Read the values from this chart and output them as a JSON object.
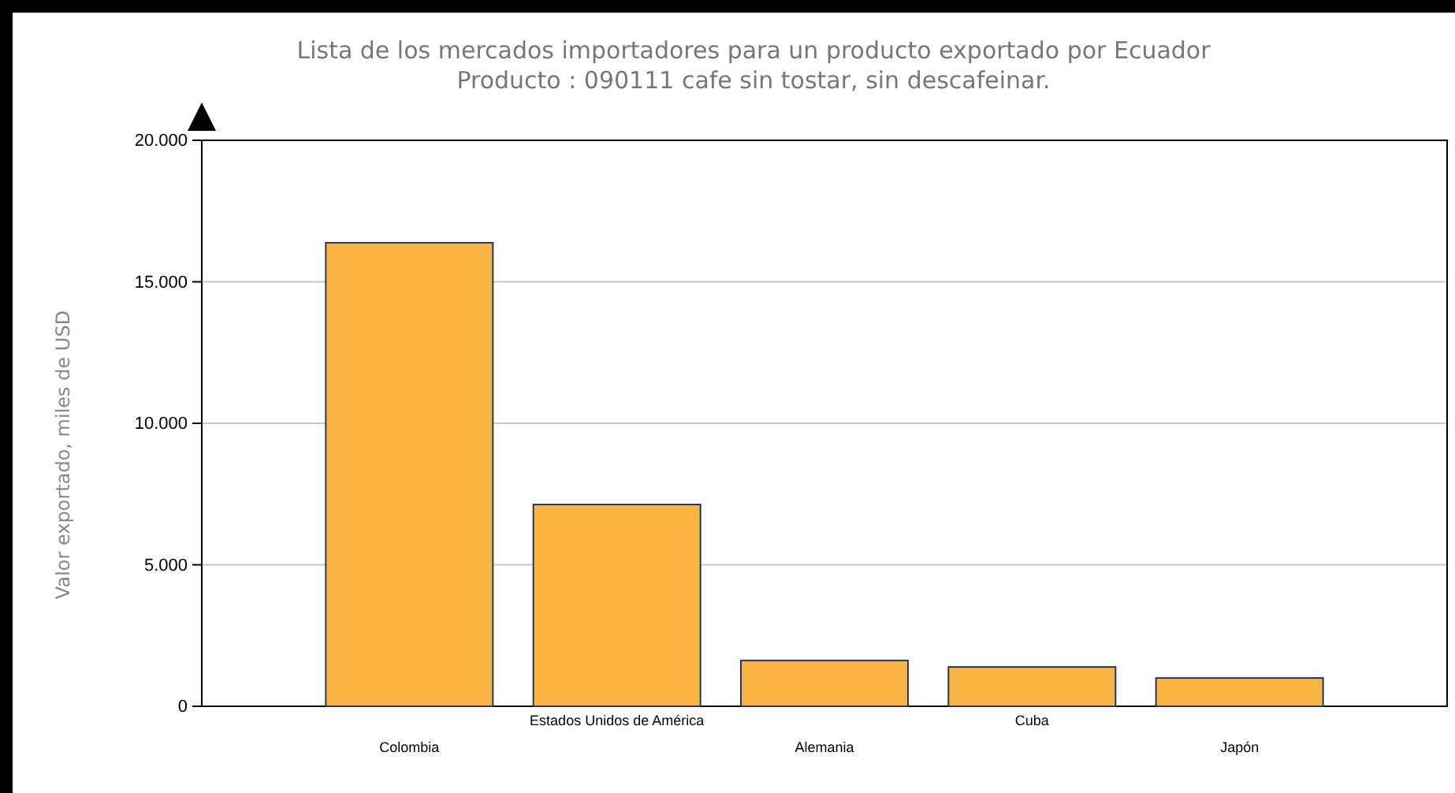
{
  "chart_data": {
    "type": "bar",
    "title": "Lista de los mercados importadores para un producto exportado por Ecuador",
    "subtitle": "Producto : 090111 cafe sin tostar, sin descafeinar.",
    "ylabel": "Valor exportado, miles de USD",
    "categories": [
      "Colombia",
      "Estados Unidos de América",
      "Alemania",
      "Cuba",
      "Japón"
    ],
    "values": [
      16380,
      7130,
      1620,
      1390,
      1000
    ],
    "color": "#fbb442",
    "ylim": [
      0,
      20000
    ],
    "yticks": [
      {
        "value": 0,
        "label": "0"
      },
      {
        "value": 5000,
        "label": "5.000"
      },
      {
        "value": 10000,
        "label": "10.000"
      },
      {
        "value": 15000,
        "label": "15.000"
      },
      {
        "value": 20000,
        "label": "20.000"
      }
    ],
    "grid": "y"
  }
}
